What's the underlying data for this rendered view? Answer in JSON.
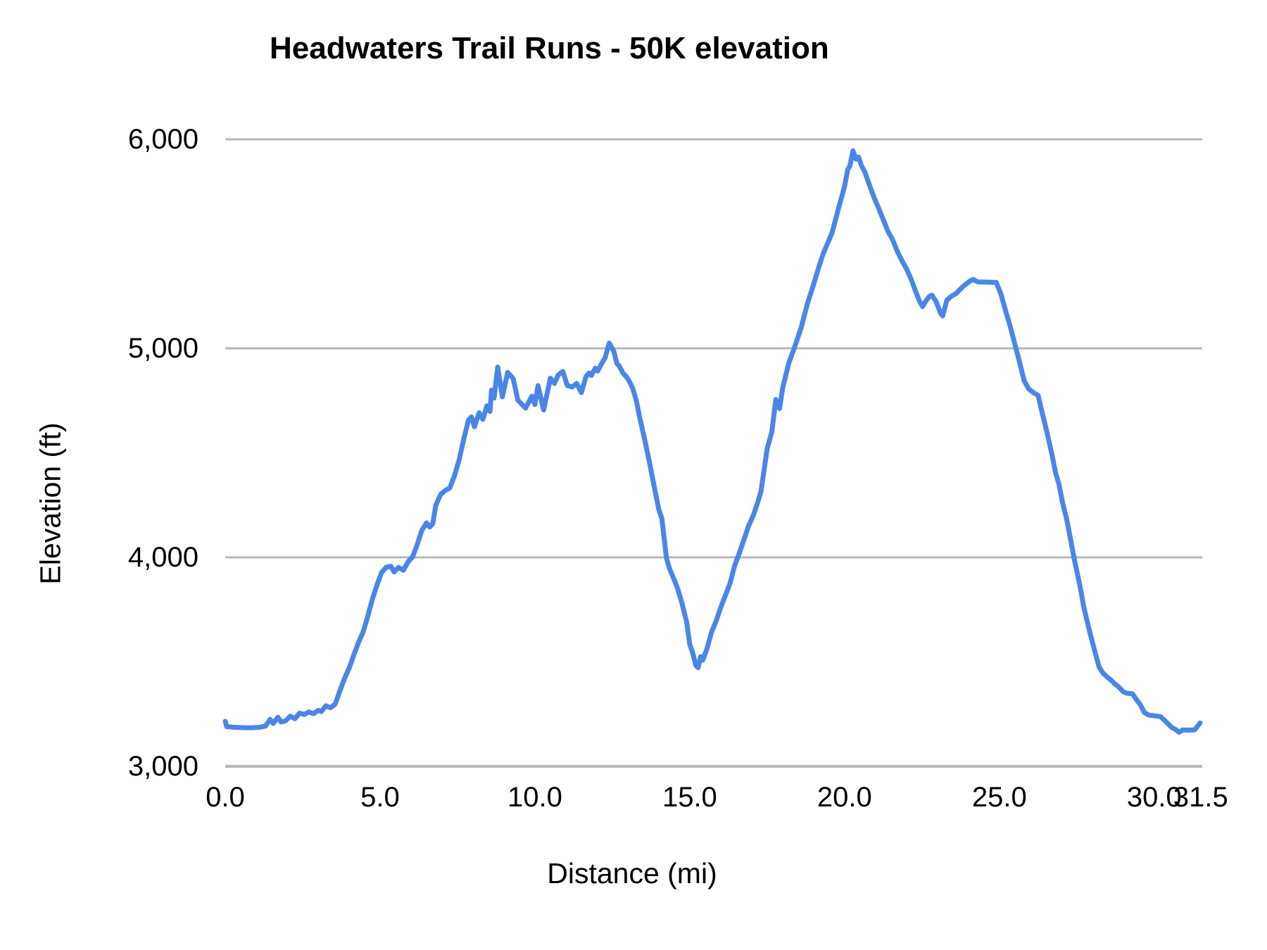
{
  "chart_data": {
    "type": "line",
    "title": "Headwaters Trail Runs - 50K elevation",
    "xlabel": "Distance (mi)",
    "ylabel": "Elevation (ft)",
    "series_color": "#4a86e8",
    "grid_color": "#b7b7b7",
    "background_color": "#ffffff",
    "legend": "none",
    "grid": "horizontal-only",
    "xlim": [
      0,
      31.55
    ],
    "ylim": [
      3000,
      6000
    ],
    "x_ticks": {
      "labels": [
        "0.0",
        "5.0",
        "10.0",
        "15.0",
        "20.0",
        "25.0",
        "30.0",
        "31.5"
      ],
      "values": [
        0,
        5,
        10,
        15,
        20,
        25,
        30,
        31.5
      ]
    },
    "y_ticks": {
      "labels": [
        "3,000",
        "4,000",
        "5,000",
        "6,000"
      ],
      "values": [
        3000,
        4000,
        5000,
        6000
      ]
    },
    "points": [
      [
        0.0,
        3215
      ],
      [
        0.05,
        3190
      ],
      [
        0.3,
        3187
      ],
      [
        0.6,
        3185
      ],
      [
        0.9,
        3185
      ],
      [
        1.15,
        3188
      ],
      [
        1.3,
        3193
      ],
      [
        1.45,
        3225
      ],
      [
        1.55,
        3205
      ],
      [
        1.7,
        3235
      ],
      [
        1.8,
        3212
      ],
      [
        1.95,
        3218
      ],
      [
        2.1,
        3240
      ],
      [
        2.25,
        3228
      ],
      [
        2.4,
        3255
      ],
      [
        2.55,
        3248
      ],
      [
        2.7,
        3260
      ],
      [
        2.85,
        3252
      ],
      [
        3.0,
        3268
      ],
      [
        3.1,
        3262
      ],
      [
        3.25,
        3290
      ],
      [
        3.4,
        3280
      ],
      [
        3.55,
        3298
      ],
      [
        3.7,
        3360
      ],
      [
        3.85,
        3420
      ],
      [
        4.0,
        3470
      ],
      [
        4.15,
        3532
      ],
      [
        4.3,
        3592
      ],
      [
        4.45,
        3642
      ],
      [
        4.6,
        3717
      ],
      [
        4.75,
        3800
      ],
      [
        4.9,
        3868
      ],
      [
        5.05,
        3928
      ],
      [
        5.2,
        3953
      ],
      [
        5.35,
        3957
      ],
      [
        5.45,
        3930
      ],
      [
        5.6,
        3952
      ],
      [
        5.75,
        3938
      ],
      [
        5.9,
        3978
      ],
      [
        6.05,
        4002
      ],
      [
        6.2,
        4062
      ],
      [
        6.35,
        4130
      ],
      [
        6.5,
        4165
      ],
      [
        6.6,
        4145
      ],
      [
        6.7,
        4162
      ],
      [
        6.8,
        4250
      ],
      [
        6.95,
        4300
      ],
      [
        7.1,
        4320
      ],
      [
        7.25,
        4332
      ],
      [
        7.4,
        4390
      ],
      [
        7.55,
        4465
      ],
      [
        7.7,
        4565
      ],
      [
        7.85,
        4655
      ],
      [
        7.95,
        4672
      ],
      [
        8.05,
        4625
      ],
      [
        8.2,
        4692
      ],
      [
        8.32,
        4660
      ],
      [
        8.45,
        4725
      ],
      [
        8.55,
        4698
      ],
      [
        8.6,
        4800
      ],
      [
        8.68,
        4762
      ],
      [
        8.8,
        4910
      ],
      [
        8.95,
        4768
      ],
      [
        9.12,
        4885
      ],
      [
        9.3,
        4855
      ],
      [
        9.45,
        4752
      ],
      [
        9.55,
        4737
      ],
      [
        9.7,
        4714
      ],
      [
        9.9,
        4771
      ],
      [
        10.0,
        4731
      ],
      [
        10.1,
        4822
      ],
      [
        10.28,
        4705
      ],
      [
        10.5,
        4857
      ],
      [
        10.63,
        4832
      ],
      [
        10.75,
        4872
      ],
      [
        10.9,
        4890
      ],
      [
        11.05,
        4822
      ],
      [
        11.2,
        4815
      ],
      [
        11.35,
        4832
      ],
      [
        11.5,
        4788
      ],
      [
        11.65,
        4865
      ],
      [
        11.75,
        4882
      ],
      [
        11.82,
        4870
      ],
      [
        11.95,
        4905
      ],
      [
        12.03,
        4892
      ],
      [
        12.15,
        4926
      ],
      [
        12.27,
        4956
      ],
      [
        12.4,
        5025
      ],
      [
        12.55,
        4985
      ],
      [
        12.65,
        4926
      ],
      [
        12.72,
        4916
      ],
      [
        12.85,
        4880
      ],
      [
        12.95,
        4865
      ],
      [
        13.05,
        4842
      ],
      [
        13.16,
        4808
      ],
      [
        13.28,
        4747
      ],
      [
        13.38,
        4672
      ],
      [
        13.55,
        4560
      ],
      [
        13.7,
        4455
      ],
      [
        13.85,
        4340
      ],
      [
        14.0,
        4230
      ],
      [
        14.1,
        4185
      ],
      [
        14.25,
        3995
      ],
      [
        14.35,
        3945
      ],
      [
        14.5,
        3892
      ],
      [
        14.6,
        3855
      ],
      [
        14.75,
        3780
      ],
      [
        14.9,
        3690
      ],
      [
        15.0,
        3585
      ],
      [
        15.1,
        3540
      ],
      [
        15.2,
        3482
      ],
      [
        15.27,
        3472
      ],
      [
        15.35,
        3525
      ],
      [
        15.42,
        3508
      ],
      [
        15.55,
        3560
      ],
      [
        15.7,
        3640
      ],
      [
        15.85,
        3695
      ],
      [
        16.0,
        3760
      ],
      [
        16.15,
        3818
      ],
      [
        16.3,
        3875
      ],
      [
        16.45,
        3960
      ],
      [
        16.6,
        4020
      ],
      [
        16.75,
        4085
      ],
      [
        16.9,
        4150
      ],
      [
        17.05,
        4200
      ],
      [
        17.2,
        4265
      ],
      [
        17.3,
        4315
      ],
      [
        17.5,
        4520
      ],
      [
        17.65,
        4600
      ],
      [
        17.78,
        4755
      ],
      [
        17.9,
        4712
      ],
      [
        18.0,
        4810
      ],
      [
        18.2,
        4930
      ],
      [
        18.4,
        5012
      ],
      [
        18.6,
        5100
      ],
      [
        18.8,
        5215
      ],
      [
        18.95,
        5282
      ],
      [
        19.15,
        5380
      ],
      [
        19.3,
        5450
      ],
      [
        19.45,
        5502
      ],
      [
        19.6,
        5555
      ],
      [
        19.75,
        5640
      ],
      [
        19.9,
        5722
      ],
      [
        20.0,
        5775
      ],
      [
        20.1,
        5855
      ],
      [
        20.17,
        5872
      ],
      [
        20.27,
        5945
      ],
      [
        20.37,
        5905
      ],
      [
        20.45,
        5915
      ],
      [
        20.55,
        5872
      ],
      [
        20.65,
        5845
      ],
      [
        20.8,
        5782
      ],
      [
        20.95,
        5722
      ],
      [
        21.1,
        5670
      ],
      [
        21.25,
        5615
      ],
      [
        21.4,
        5560
      ],
      [
        21.55,
        5520
      ],
      [
        21.7,
        5465
      ],
      [
        21.85,
        5420
      ],
      [
        22.0,
        5380
      ],
      [
        22.15,
        5330
      ],
      [
        22.3,
        5270
      ],
      [
        22.42,
        5225
      ],
      [
        22.52,
        5200
      ],
      [
        22.62,
        5225
      ],
      [
        22.72,
        5245
      ],
      [
        22.82,
        5255
      ],
      [
        22.95,
        5225
      ],
      [
        23.1,
        5168
      ],
      [
        23.17,
        5155
      ],
      [
        23.3,
        5230
      ],
      [
        23.45,
        5250
      ],
      [
        23.6,
        5262
      ],
      [
        23.75,
        5285
      ],
      [
        23.9,
        5305
      ],
      [
        24.05,
        5322
      ],
      [
        24.15,
        5330
      ],
      [
        24.3,
        5318
      ],
      [
        24.55,
        5317
      ],
      [
        24.9,
        5315
      ],
      [
        25.05,
        5260
      ],
      [
        25.2,
        5180
      ],
      [
        25.35,
        5105
      ],
      [
        25.5,
        5020
      ],
      [
        25.65,
        4935
      ],
      [
        25.8,
        4845
      ],
      [
        25.95,
        4805
      ],
      [
        26.1,
        4788
      ],
      [
        26.25,
        4775
      ],
      [
        26.4,
        4680
      ],
      [
        26.55,
        4590
      ],
      [
        26.7,
        4490
      ],
      [
        26.82,
        4400
      ],
      [
        26.92,
        4352
      ],
      [
        27.05,
        4255
      ],
      [
        27.17,
        4185
      ],
      [
        27.3,
        4085
      ],
      [
        27.42,
        3990
      ],
      [
        27.5,
        3935
      ],
      [
        27.6,
        3865
      ],
      [
        27.72,
        3765
      ],
      [
        27.85,
        3685
      ],
      [
        27.97,
        3612
      ],
      [
        28.1,
        3540
      ],
      [
        28.22,
        3475
      ],
      [
        28.35,
        3445
      ],
      [
        28.5,
        3425
      ],
      [
        28.62,
        3410
      ],
      [
        28.72,
        3395
      ],
      [
        28.85,
        3380
      ],
      [
        29.0,
        3357
      ],
      [
        29.1,
        3350
      ],
      [
        29.3,
        3347
      ],
      [
        29.42,
        3320
      ],
      [
        29.55,
        3295
      ],
      [
        29.68,
        3258
      ],
      [
        29.82,
        3245
      ],
      [
        30.0,
        3242
      ],
      [
        30.2,
        3238
      ],
      [
        30.32,
        3222
      ],
      [
        30.45,
        3203
      ],
      [
        30.57,
        3186
      ],
      [
        30.7,
        3175
      ],
      [
        30.8,
        3163
      ],
      [
        30.92,
        3174
      ],
      [
        31.1,
        3173
      ],
      [
        31.3,
        3174
      ],
      [
        31.42,
        3196
      ],
      [
        31.48,
        3208
      ]
    ]
  }
}
